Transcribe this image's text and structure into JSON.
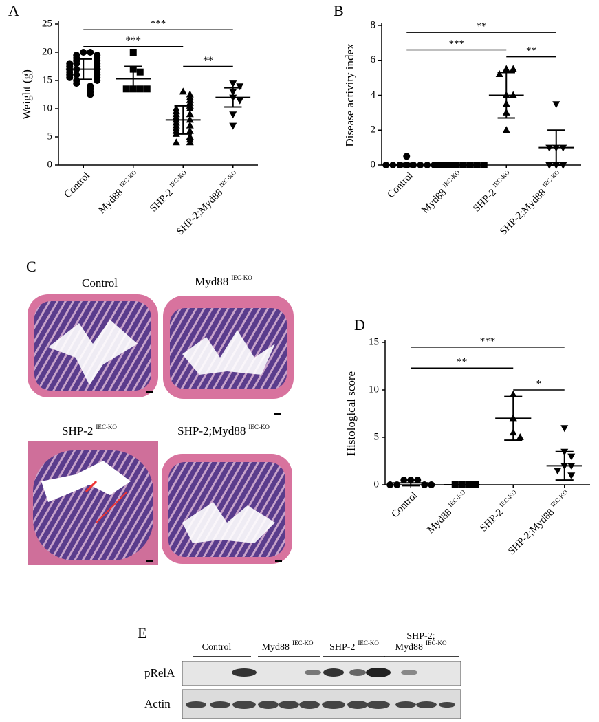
{
  "chart_data": [
    {
      "type": "dotplot",
      "panel": "A",
      "ylabel": "Weight (g)",
      "categories": [
        "Control",
        "Myd88",
        "SHP-2",
        "SHP-2;Myd88"
      ],
      "category_superscripts": [
        null,
        "IEC-KO",
        "IEC-KO",
        "IEC-KO"
      ],
      "markers": [
        "circle",
        "square",
        "triangle",
        "triangle-down"
      ],
      "color": "#000000",
      "groups": [
        [
          20,
          20,
          19.5,
          19.5,
          19,
          19,
          18.5,
          18.5,
          18,
          18,
          18,
          17.5,
          17.5,
          17,
          17,
          17,
          16.5,
          16.5,
          16,
          16,
          16,
          15.5,
          15.5,
          15,
          15,
          14.5,
          14,
          13.5,
          13,
          12.5
        ],
        [
          20,
          17,
          16.5,
          13.5,
          13.5,
          13.5,
          13.5
        ],
        [
          13,
          12.5,
          12,
          11.5,
          11,
          10.5,
          10,
          10,
          9.5,
          9,
          9,
          8.5,
          8,
          8,
          7.5,
          7,
          7,
          6.5,
          6,
          6,
          5.5,
          5,
          4.5,
          4,
          4
        ],
        [
          14.5,
          14,
          13,
          12,
          11.5,
          9,
          7
        ]
      ],
      "means": [
        17,
        15.3,
        8,
        12
      ],
      "sd": [
        1.8,
        2.2,
        2.5,
        1.7
      ],
      "ylim": [
        0,
        25
      ],
      "yticks": [
        0,
        5,
        10,
        15,
        20,
        25
      ],
      "significance": [
        {
          "between": [
            0,
            3
          ],
          "y": 24,
          "label": "***"
        },
        {
          "between": [
            0,
            2
          ],
          "y": 21,
          "label": "***"
        },
        {
          "between": [
            2,
            3
          ],
          "y": 17.5,
          "label": "**"
        }
      ]
    },
    {
      "type": "dotplot",
      "panel": "B",
      "ylabel": "Disease activity index",
      "categories": [
        "Control",
        "Myd88",
        "SHP-2",
        "SHP-2;Myd88"
      ],
      "category_superscripts": [
        null,
        "IEC-KO",
        "IEC-KO",
        "IEC-KO"
      ],
      "markers": [
        "circle",
        "square",
        "triangle",
        "triangle-down"
      ],
      "color": "#000000",
      "groups": [
        [
          0.5,
          0,
          0,
          0,
          0,
          0,
          0,
          0,
          0
        ],
        [
          0,
          0,
          0,
          0,
          0,
          0,
          0,
          0
        ],
        [
          5.5,
          5.5,
          5.2,
          4,
          4,
          3.5,
          3,
          2
        ],
        [
          3.5,
          1,
          1,
          1,
          0,
          0,
          0
        ]
      ],
      "means": [
        0,
        0,
        4,
        1
      ],
      "sd": [
        0.1,
        0,
        1.3,
        1
      ],
      "ylim": [
        0,
        8
      ],
      "yticks": [
        0,
        2,
        4,
        6,
        8
      ],
      "significance": [
        {
          "between": [
            0,
            3
          ],
          "y": 7.6,
          "label": "**"
        },
        {
          "between": [
            0,
            2
          ],
          "y": 6.6,
          "label": "***"
        },
        {
          "between": [
            2,
            3
          ],
          "y": 6.2,
          "label": "**"
        }
      ]
    },
    {
      "type": "dotplot",
      "panel": "D",
      "ylabel": "Histological score",
      "categories": [
        "Control",
        "Myd88",
        "SHP-2",
        "SHP-2;Myd88"
      ],
      "category_superscripts": [
        null,
        "IEC-KO",
        "IEC-KO",
        "IEC-KO"
      ],
      "markers": [
        "circle",
        "square",
        "triangle",
        "triangle-down"
      ],
      "color": "#000000",
      "groups": [
        [
          0.5,
          0.5,
          0.5,
          0,
          0,
          0,
          0
        ],
        [
          0,
          0,
          0,
          0
        ],
        [
          9.5,
          7,
          5.5,
          5
        ],
        [
          6,
          3.5,
          3,
          2,
          2,
          1.5,
          1
        ]
      ],
      "means": [
        0.2,
        0,
        7,
        2
      ],
      "sd": [
        0.3,
        0,
        2.3,
        1.5
      ],
      "ylim": [
        0,
        15
      ],
      "yticks": [
        0,
        5,
        10,
        15
      ],
      "significance": [
        {
          "between": [
            0,
            3
          ],
          "y": 14.5,
          "label": "***"
        },
        {
          "between": [
            0,
            2
          ],
          "y": 12.3,
          "label": "**"
        },
        {
          "between": [
            2,
            3
          ],
          "y": 10,
          "label": "*"
        }
      ]
    }
  ],
  "panel_c": {
    "label": "C",
    "images": [
      {
        "title": "Control",
        "sup": null
      },
      {
        "title": "Myd88",
        "sup": "IEC-KO"
      },
      {
        "title": "SHP-2",
        "sup": "IEC-KO"
      },
      {
        "title": "SHP-2;Myd88",
        "sup": "IEC-KO"
      }
    ]
  },
  "panel_e": {
    "label": "E",
    "groups": [
      {
        "lines": [
          "Control"
        ],
        "sup": null
      },
      {
        "lines": [
          "Myd88"
        ],
        "sup": "IEC-KO"
      },
      {
        "lines": [
          "SHP-2"
        ],
        "sup": "IEC-KO"
      },
      {
        "lines": [
          "SHP-2;",
          "Myd88"
        ],
        "sup": "IEC-KO"
      }
    ],
    "rows": [
      "pRelA",
      "Actin"
    ]
  }
}
